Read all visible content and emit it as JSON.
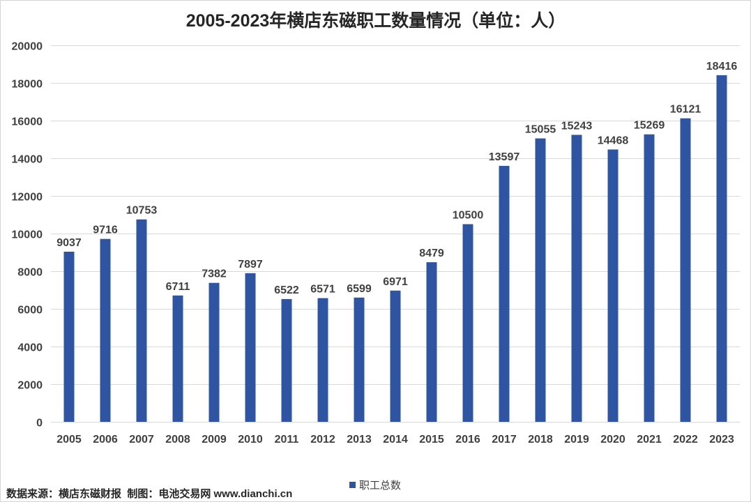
{
  "footer": {
    "source": "数据来源：横店东磁财报  制图：电池交易网 www.dianchi.cn"
  },
  "chart_data": {
    "type": "bar",
    "title": "2005-2023年横店东磁职工数量情况（单位：人）",
    "xlabel": "",
    "ylabel": "",
    "categories": [
      "2005",
      "2006",
      "2007",
      "2008",
      "2009",
      "2010",
      "2011",
      "2012",
      "2013",
      "2014",
      "2015",
      "2016",
      "2017",
      "2018",
      "2019",
      "2020",
      "2021",
      "2022",
      "2023"
    ],
    "series": [
      {
        "name": "职工总数",
        "color": "#2F54A1",
        "values": [
          9037,
          9716,
          10753,
          6711,
          7382,
          7897,
          6522,
          6571,
          6599,
          6971,
          8479,
          10500,
          13597,
          15055,
          15243,
          14468,
          15269,
          16121,
          18416
        ]
      }
    ],
    "ylim": [
      0,
      20000
    ],
    "yticks": [
      0,
      2000,
      4000,
      6000,
      8000,
      10000,
      12000,
      14000,
      16000,
      18000,
      20000
    ],
    "grid": true,
    "data_labels": true,
    "legend": "bottom-center"
  }
}
